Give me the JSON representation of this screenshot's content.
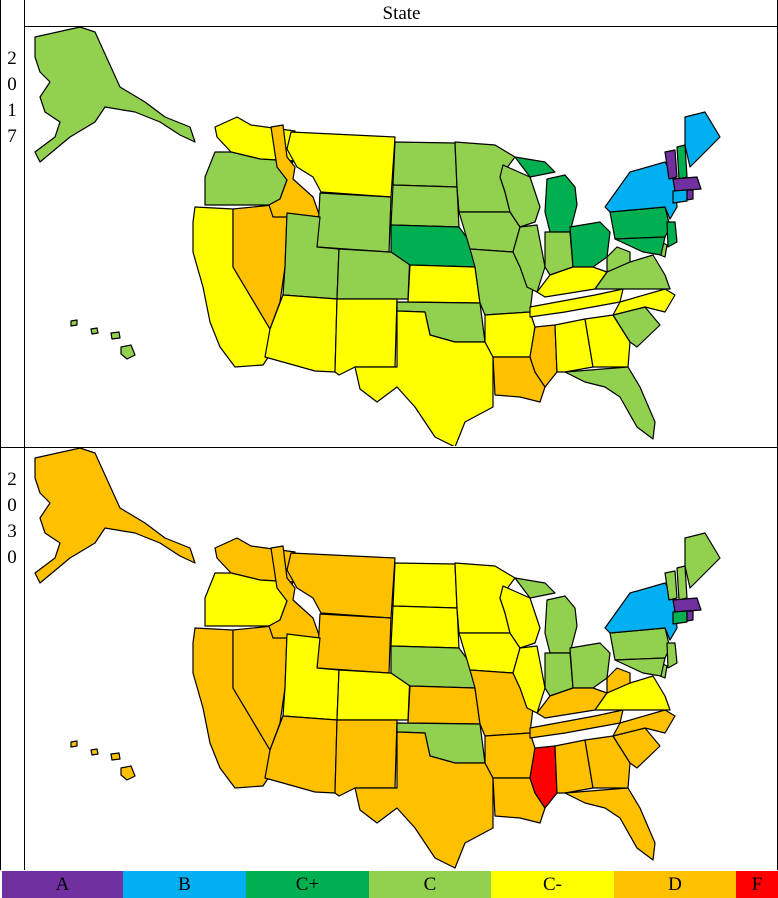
{
  "header": {
    "title": "State"
  },
  "panels": [
    {
      "year_chars": [
        "2",
        "0",
        "1",
        "7"
      ]
    },
    {
      "year_chars": [
        "2",
        "0",
        "3",
        "0"
      ]
    }
  ],
  "grades": {
    "A": {
      "label": "A",
      "color": "#7030a0"
    },
    "B": {
      "label": "B",
      "color": "#00b0f0"
    },
    "Cp": {
      "label": "C+",
      "color": "#00b050"
    },
    "C": {
      "label": "C",
      "color": "#92d050"
    },
    "Cm": {
      "label": "C-",
      "color": "#ffff00"
    },
    "D": {
      "label": "D",
      "color": "#ffc000"
    },
    "F": {
      "label": "F",
      "color": "#ff0000"
    }
  },
  "legend_order": [
    "A",
    "B",
    "Cp",
    "C",
    "Cm",
    "D",
    "F"
  ],
  "state_grades": {
    "2017": {
      "WA": "Cm",
      "OR": "C",
      "CA": "Cm",
      "NV": "D",
      "ID": "D",
      "MT": "Cm",
      "WY": "C",
      "UT": "C",
      "CO": "C",
      "AZ": "Cm",
      "NM": "Cm",
      "ND": "C",
      "SD": "C",
      "NE": "Cp",
      "KS": "Cm",
      "OK": "C",
      "TX": "Cm",
      "MN": "C",
      "IA": "C",
      "MO": "C",
      "AR": "Cm",
      "LA": "D",
      "WI": "C",
      "IL": "C",
      "MI": "Cp",
      "IN": "C",
      "OH": "Cp",
      "KY": "Cm",
      "TN": "Cm",
      "MS": "D",
      "AL": "Cm",
      "GA": "Cm",
      "FL": "C",
      "SC": "C",
      "NC": "Cm",
      "VA": "C",
      "WV": "C",
      "PA": "Cp",
      "NY": "B",
      "NJ": "Cp",
      "DE": "C",
      "MD": "Cp",
      "VT": "A",
      "NH": "Cp",
      "ME": "B",
      "MA": "A",
      "CT": "B",
      "RI": "A",
      "AK": "C",
      "HI": "C"
    },
    "2030": {
      "WA": "D",
      "OR": "Cm",
      "CA": "D",
      "NV": "D",
      "ID": "D",
      "MT": "D",
      "WY": "D",
      "UT": "Cm",
      "CO": "Cm",
      "AZ": "D",
      "NM": "D",
      "ND": "Cm",
      "SD": "Cm",
      "NE": "C",
      "KS": "D",
      "OK": "C",
      "TX": "D",
      "MN": "Cm",
      "IA": "Cm",
      "MO": "D",
      "AR": "D",
      "LA": "D",
      "WI": "Cm",
      "IL": "Cm",
      "MI": "C",
      "IN": "C",
      "OH": "C",
      "KY": "D",
      "TN": "D",
      "MS": "F",
      "AL": "D",
      "GA": "D",
      "FL": "D",
      "SC": "D",
      "NC": "D",
      "VA": "Cm",
      "WV": "D",
      "PA": "C",
      "NY": "B",
      "NJ": "C",
      "DE": "C",
      "MD": "C",
      "VT": "C",
      "NH": "C",
      "ME": "C",
      "MA": "A",
      "CT": "Cp",
      "RI": "A",
      "AK": "D",
      "HI": "D"
    }
  }
}
